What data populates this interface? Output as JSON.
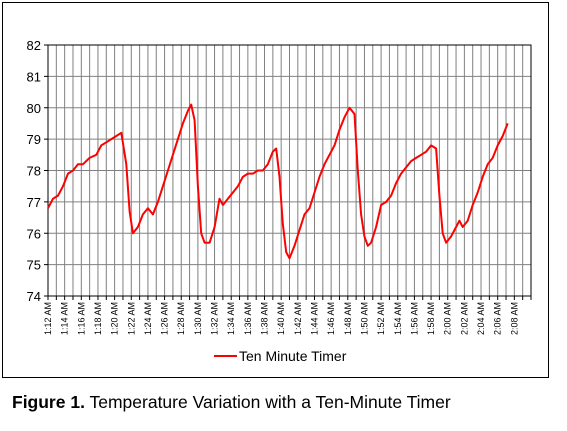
{
  "chart_data": {
    "type": "line",
    "title": "",
    "xlabel": "",
    "ylabel": "",
    "ylim": [
      74,
      82
    ],
    "yticks": [
      74,
      75,
      76,
      77,
      78,
      79,
      80,
      81,
      82
    ],
    "x_tick_labels": [
      "1:12 AM",
      "1:14 AM",
      "1:16 AM",
      "1:18 AM",
      "1:20 AM",
      "1:22 AM",
      "1:24 AM",
      "1:26 AM",
      "1:28 AM",
      "1:30 AM",
      "1:32 AM",
      "1:34 AM",
      "1:36 AM",
      "1:38 AM",
      "1:40 AM",
      "1:42 AM",
      "1:44 AM",
      "1:46 AM",
      "1:48 AM",
      "1:50 AM",
      "1:52 AM",
      "1:54 AM",
      "1:56 AM",
      "1:58 AM",
      "2:00 AM",
      "2:02 AM",
      "2:04 AM",
      "2:06 AM",
      "2:08 AM"
    ],
    "x_start_minutes": 72,
    "x_end_minutes": 130,
    "grid": true,
    "legend_position": "bottom-center",
    "series": [
      {
        "name": "Ten Minute Timer",
        "color": "#ff0000",
        "points": [
          [
            72.0,
            76.8
          ],
          [
            72.6,
            77.1
          ],
          [
            73.2,
            77.2
          ],
          [
            73.8,
            77.5
          ],
          [
            74.4,
            77.9
          ],
          [
            75.0,
            78.0
          ],
          [
            75.6,
            78.2
          ],
          [
            76.2,
            78.2
          ],
          [
            77.0,
            78.4
          ],
          [
            77.8,
            78.5
          ],
          [
            78.4,
            78.8
          ],
          [
            79.0,
            78.9
          ],
          [
            79.6,
            79.0
          ],
          [
            80.2,
            79.1
          ],
          [
            80.8,
            79.2
          ],
          [
            81.4,
            78.2
          ],
          [
            81.8,
            76.7
          ],
          [
            82.2,
            76.0
          ],
          [
            82.8,
            76.2
          ],
          [
            83.4,
            76.6
          ],
          [
            84.0,
            76.8
          ],
          [
            84.6,
            76.6
          ],
          [
            85.2,
            77.0
          ],
          [
            85.8,
            77.5
          ],
          [
            86.4,
            78.0
          ],
          [
            87.0,
            78.5
          ],
          [
            87.6,
            79.0
          ],
          [
            88.2,
            79.5
          ],
          [
            88.8,
            79.9
          ],
          [
            89.2,
            80.1
          ],
          [
            89.6,
            79.6
          ],
          [
            90.0,
            77.5
          ],
          [
            90.4,
            76.0
          ],
          [
            90.8,
            75.7
          ],
          [
            91.4,
            75.7
          ],
          [
            92.0,
            76.2
          ],
          [
            92.6,
            77.1
          ],
          [
            93.0,
            76.9
          ],
          [
            93.6,
            77.1
          ],
          [
            94.2,
            77.3
          ],
          [
            94.8,
            77.5
          ],
          [
            95.4,
            77.8
          ],
          [
            96.0,
            77.9
          ],
          [
            96.6,
            77.9
          ],
          [
            97.2,
            78.0
          ],
          [
            97.8,
            78.0
          ],
          [
            98.4,
            78.2
          ],
          [
            99.0,
            78.6
          ],
          [
            99.4,
            78.7
          ],
          [
            99.8,
            77.8
          ],
          [
            100.2,
            76.3
          ],
          [
            100.6,
            75.4
          ],
          [
            101.0,
            75.2
          ],
          [
            101.6,
            75.6
          ],
          [
            102.2,
            76.1
          ],
          [
            102.8,
            76.6
          ],
          [
            103.4,
            76.8
          ],
          [
            104.0,
            77.3
          ],
          [
            104.6,
            77.8
          ],
          [
            105.2,
            78.2
          ],
          [
            105.8,
            78.5
          ],
          [
            106.4,
            78.8
          ],
          [
            107.0,
            79.3
          ],
          [
            107.6,
            79.7
          ],
          [
            108.2,
            80.0
          ],
          [
            108.8,
            79.8
          ],
          [
            109.2,
            78.0
          ],
          [
            109.6,
            76.6
          ],
          [
            110.0,
            75.9
          ],
          [
            110.4,
            75.6
          ],
          [
            110.8,
            75.7
          ],
          [
            111.4,
            76.2
          ],
          [
            112.0,
            76.9
          ],
          [
            112.6,
            77.0
          ],
          [
            113.2,
            77.2
          ],
          [
            113.8,
            77.6
          ],
          [
            114.4,
            77.9
          ],
          [
            115.0,
            78.1
          ],
          [
            115.6,
            78.3
          ],
          [
            116.2,
            78.4
          ],
          [
            116.8,
            78.5
          ],
          [
            117.4,
            78.6
          ],
          [
            118.0,
            78.8
          ],
          [
            118.6,
            78.7
          ],
          [
            119.0,
            77.2
          ],
          [
            119.4,
            76.0
          ],
          [
            119.8,
            75.7
          ],
          [
            120.4,
            75.9
          ],
          [
            121.0,
            76.2
          ],
          [
            121.4,
            76.4
          ],
          [
            121.8,
            76.2
          ],
          [
            122.4,
            76.4
          ],
          [
            123.0,
            76.9
          ],
          [
            123.6,
            77.3
          ],
          [
            124.2,
            77.8
          ],
          [
            124.8,
            78.2
          ],
          [
            125.4,
            78.4
          ],
          [
            126.0,
            78.8
          ],
          [
            126.6,
            79.1
          ],
          [
            127.2,
            79.5
          ]
        ]
      }
    ]
  },
  "caption": {
    "figure_label": "Figure 1.",
    "text": "Temperature Variation with a Ten-Minute Timer"
  }
}
